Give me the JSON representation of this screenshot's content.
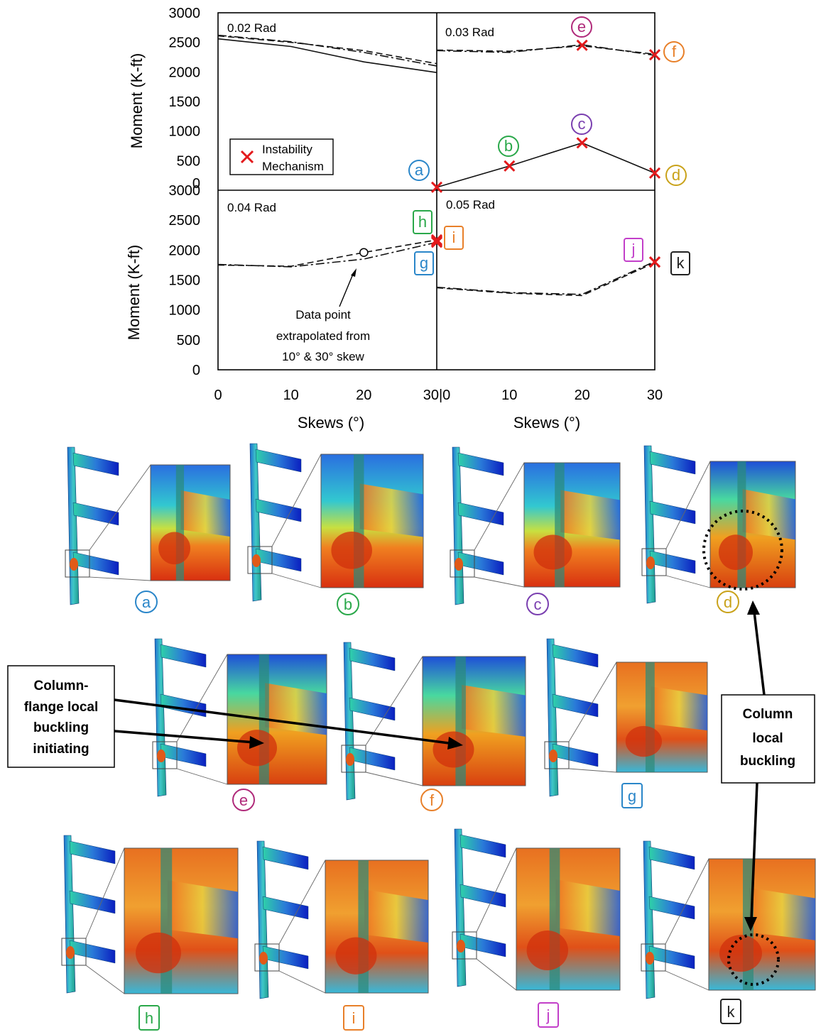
{
  "chart_data": {
    "type": "line",
    "xlabel": "Skews (°)",
    "ylabel": "Moment (K-ft)",
    "y_ticks": [
      0,
      500,
      1000,
      1500,
      2000,
      2500,
      3000
    ],
    "x_ticks_left": [
      "0",
      "10",
      "20",
      "30|0"
    ],
    "x_ticks_right": [
      "10",
      "20",
      "30"
    ],
    "legend": {
      "label_line1": "Instability",
      "label_line2": "Mechanism",
      "position": "bottom-left"
    },
    "panels": [
      {
        "title": "0.02 Rad",
        "xlim": [
          0,
          30
        ],
        "ylim": [
          0,
          3000
        ],
        "series": [
          {
            "style": "solid",
            "x": [
              0,
              10,
              20,
              30
            ],
            "y": [
              2560,
              2430,
              2170,
              1990
            ]
          },
          {
            "style": "dashed",
            "x": [
              0,
              10,
              20,
              30
            ],
            "y": [
              2610,
              2500,
              2360,
              2140
            ]
          },
          {
            "style": "dashdot",
            "x": [
              0,
              10,
              20,
              30
            ],
            "y": [
              2620,
              2510,
              2330,
              2100
            ]
          }
        ],
        "markers": []
      },
      {
        "title": "0.03 Rad",
        "xlim": [
          0,
          30
        ],
        "ylim": [
          0,
          3000
        ],
        "series": [
          {
            "style": "dashed",
            "x": [
              0,
              10,
              20,
              30
            ],
            "y": [
              2370,
              2350,
              2440,
              2300
            ]
          },
          {
            "style": "dashdot",
            "x": [
              0,
              10,
              20,
              30
            ],
            "y": [
              2360,
              2330,
              2460,
              2280
            ]
          },
          {
            "style": "solid",
            "x": [
              0,
              10,
              20,
              30
            ],
            "y": [
              50,
              410,
              800,
              290
            ]
          }
        ],
        "markers": [
          {
            "x": 0,
            "y": 50,
            "label": "a",
            "color": "#2a86c9"
          },
          {
            "x": 10,
            "y": 410,
            "label": "b",
            "color": "#2aa84a"
          },
          {
            "x": 20,
            "y": 800,
            "label": "c",
            "color": "#7a3fb0"
          },
          {
            "x": 30,
            "y": 290,
            "label": "d",
            "color": "#c9a21a"
          },
          {
            "x": 20,
            "y": 2450,
            "label": "e",
            "color": "#b02a7a"
          },
          {
            "x": 30,
            "y": 2290,
            "label": "f",
            "color": "#e8802a"
          }
        ]
      },
      {
        "title": "0.04 Rad",
        "xlim": [
          0,
          30
        ],
        "ylim": [
          0,
          3000
        ],
        "series": [
          {
            "style": "dashed",
            "x": [
              0,
              10,
              20,
              30
            ],
            "y": [
              1750,
              1730,
              1960,
              2170
            ]
          },
          {
            "style": "dashdot",
            "x": [
              0,
              10,
              20,
              30
            ],
            "y": [
              1760,
              1720,
              1850,
              2130
            ]
          }
        ],
        "extrapolated_point": {
          "x": 20,
          "y": 1960
        },
        "annotation": [
          "Data point",
          "extrapolated from",
          "10° & 30° skew"
        ],
        "markers": [
          {
            "x": 30,
            "y": 2170,
            "label": "h",
            "color": "#2aa84a"
          },
          {
            "x": 30,
            "y": 2130,
            "label": "i",
            "color": "#e8802a"
          },
          {
            "x": 30,
            "y": 2150,
            "label": "g",
            "color": "#2a86c9"
          }
        ]
      },
      {
        "title": "0.05 Rad",
        "xlim": [
          0,
          30
        ],
        "ylim": [
          0,
          3000
        ],
        "series": [
          {
            "style": "dashed",
            "x": [
              0,
              10,
              20,
              30
            ],
            "y": [
              1370,
              1280,
              1240,
              1790
            ]
          },
          {
            "style": "dashdot",
            "x": [
              0,
              10,
              20,
              30
            ],
            "y": [
              1380,
              1290,
              1260,
              1810
            ]
          }
        ],
        "markers": [
          {
            "x": 30,
            "y": 1800,
            "label": "j",
            "color": "#c23fc9"
          },
          {
            "x": 30,
            "y": 1800,
            "label": "k",
            "color": "#222222"
          }
        ]
      }
    ]
  },
  "figures": {
    "callout_left": [
      "Column-",
      "flange local",
      "buckling",
      "initiating"
    ],
    "callout_right": [
      "Column",
      "local",
      "buckling"
    ],
    "labels": [
      {
        "letter": "a",
        "color": "#2a86c9"
      },
      {
        "letter": "b",
        "color": "#2aa84a"
      },
      {
        "letter": "c",
        "color": "#7a3fb0"
      },
      {
        "letter": "d",
        "color": "#c9a21a"
      },
      {
        "letter": "e",
        "color": "#b02a7a"
      },
      {
        "letter": "f",
        "color": "#e8802a"
      },
      {
        "letter": "g",
        "color": "#2a86c9"
      },
      {
        "letter": "h",
        "color": "#2aa84a"
      },
      {
        "letter": "i",
        "color": "#e8802a"
      },
      {
        "letter": "j",
        "color": "#c23fc9"
      },
      {
        "letter": "k",
        "color": "#222222"
      }
    ]
  }
}
